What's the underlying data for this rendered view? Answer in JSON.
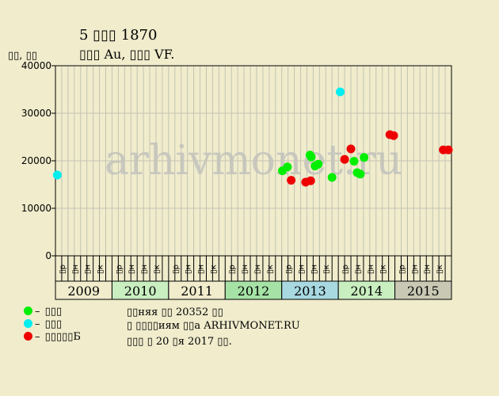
{
  "chart_data": {
    "type": "scatter",
    "title": "5 ▯▯▯ 1870",
    "subtitle": "▯▯▯ Au, ▯▯▯ VF.",
    "ylabel": "▯▯, ▯▯",
    "watermark": "arhivmonet.ru",
    "ylim": [
      0,
      40000
    ],
    "yticks": [
      0,
      10000,
      20000,
      30000,
      40000
    ],
    "grid": true,
    "years": [
      "2009",
      "2010",
      "2011",
      "2012",
      "2013",
      "2014",
      "2015"
    ],
    "year_colors": [
      "#f0eccc",
      "#c9eec0",
      "#f0eccc",
      "#a6e2a6",
      "#a8d8e0",
      "#c9eec0",
      "#c8c8b4"
    ],
    "months": [
      "▯р",
      "▯н",
      "▯н",
      "▯к"
    ],
    "series": [
      {
        "name": "▯▯▯",
        "color": "#00ee00",
        "points": [
          [
            36.1,
            17900
          ],
          [
            36.9,
            18700
          ],
          [
            40.5,
            21200
          ],
          [
            40.7,
            20800
          ],
          [
            41.3,
            18900
          ],
          [
            41.8,
            19300
          ],
          [
            44.0,
            16500
          ],
          [
            47.5,
            19900
          ],
          [
            48.0,
            17500
          ],
          [
            48.5,
            17200
          ],
          [
            49.1,
            20700
          ]
        ]
      },
      {
        "name": "▯▯▯",
        "color": "#00eeee",
        "points": [
          [
            0.3,
            17000
          ],
          [
            45.3,
            34500
          ]
        ]
      },
      {
        "name": "▯▯▯▯▯Б",
        "color": "#ee0000",
        "points": [
          [
            37.5,
            15900
          ],
          [
            39.8,
            15500
          ],
          [
            40.6,
            15800
          ],
          [
            46.0,
            20300
          ],
          [
            47.0,
            22500
          ],
          [
            53.2,
            25500
          ],
          [
            53.8,
            25300
          ],
          [
            61.7,
            22300
          ],
          [
            62.5,
            22300
          ]
        ]
      }
    ]
  },
  "info": {
    "line1": "▯▯няя ▯▯ 20352 ▯▯",
    "line2": "▯ ▯▯▯▯иям ▯▯а ARHIVMONET.RU",
    "line3": "▯▯▯ ▯ 20 ▯я 2017 ▯▯."
  }
}
